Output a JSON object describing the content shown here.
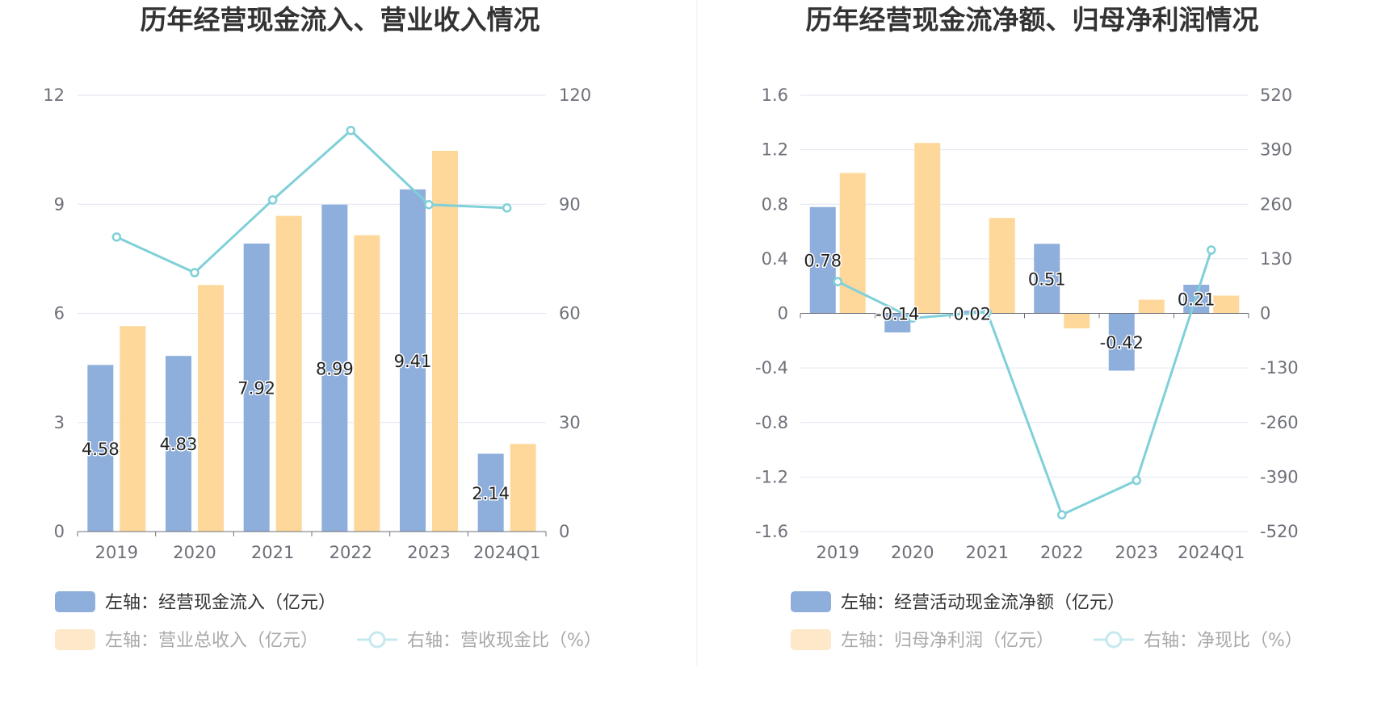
{
  "colors": {
    "bar_blue": "#8eaedb",
    "bar_orange": "#fed89b",
    "bar_orange_dim": "#fde9c9",
    "line": "#7fd0d8",
    "line_dim": "#c6e9ed",
    "grid": "#e0e6f1",
    "axis": "#6e7079",
    "divider": "#eeeeee"
  },
  "chart_data": [
    {
      "type": "bar",
      "title": "历年经营现金流入、营业收入情况",
      "categories": [
        "2019",
        "2020",
        "2021",
        "2022",
        "2023",
        "2024Q1"
      ],
      "left_axis": {
        "min": 0,
        "max": 12,
        "ticks": [
          "0",
          "3",
          "6",
          "9",
          "12"
        ]
      },
      "right_axis": {
        "min": 0,
        "max": 120,
        "ticks": [
          "0",
          "30",
          "60",
          "90",
          "120"
        ]
      },
      "series": [
        {
          "name": "左轴：经营现金流入（亿元）",
          "kind": "bar",
          "axis": "left",
          "values": [
            4.58,
            4.83,
            7.92,
            8.99,
            9.41,
            2.14
          ],
          "labels": [
            "4.58",
            "4.83",
            "7.92",
            "8.99",
            "9.41",
            "2.14"
          ]
        },
        {
          "name": "左轴：营业总收入（亿元）",
          "kind": "bar",
          "axis": "left",
          "values": [
            5.65,
            6.78,
            8.68,
            8.15,
            10.47,
            2.41
          ]
        },
        {
          "name": "右轴：营收现金比（%）",
          "kind": "line",
          "axis": "right",
          "values": [
            81,
            71.2,
            91.2,
            110.3,
            89.9,
            89
          ]
        }
      ]
    },
    {
      "type": "bar",
      "title": "历年经营现金流净额、归母净利润情况",
      "categories": [
        "2019",
        "2020",
        "2021",
        "2022",
        "2023",
        "2024Q1"
      ],
      "left_axis": {
        "min": -1.6,
        "max": 1.6,
        "ticks": [
          "-1.6",
          "-1.2",
          "-0.8",
          "-0.4",
          "0",
          "0.4",
          "0.8",
          "1.2",
          "1.6"
        ]
      },
      "right_axis": {
        "min": -520,
        "max": 520,
        "ticks": [
          "-520",
          "-390",
          "-260",
          "-130",
          "0",
          "130",
          "260",
          "390",
          "520"
        ]
      },
      "series": [
        {
          "name": "左轴：经营活动现金流净额（亿元）",
          "kind": "bar",
          "axis": "left",
          "values": [
            0.78,
            -0.14,
            0.02,
            0.51,
            -0.42,
            0.21
          ],
          "labels": [
            "0.78",
            "-0.14",
            "0.02",
            "0.51",
            "-0.42",
            "0.21"
          ]
        },
        {
          "name": "左轴：归母净利润（亿元）",
          "kind": "bar",
          "axis": "left",
          "values": [
            1.03,
            1.25,
            0.7,
            -0.11,
            0.1,
            0.13
          ]
        },
        {
          "name": "右轴：净现比（%）",
          "kind": "line",
          "axis": "right",
          "values": [
            75.7,
            -11.2,
            2.9,
            -480,
            -398,
            151
          ]
        }
      ]
    }
  ]
}
